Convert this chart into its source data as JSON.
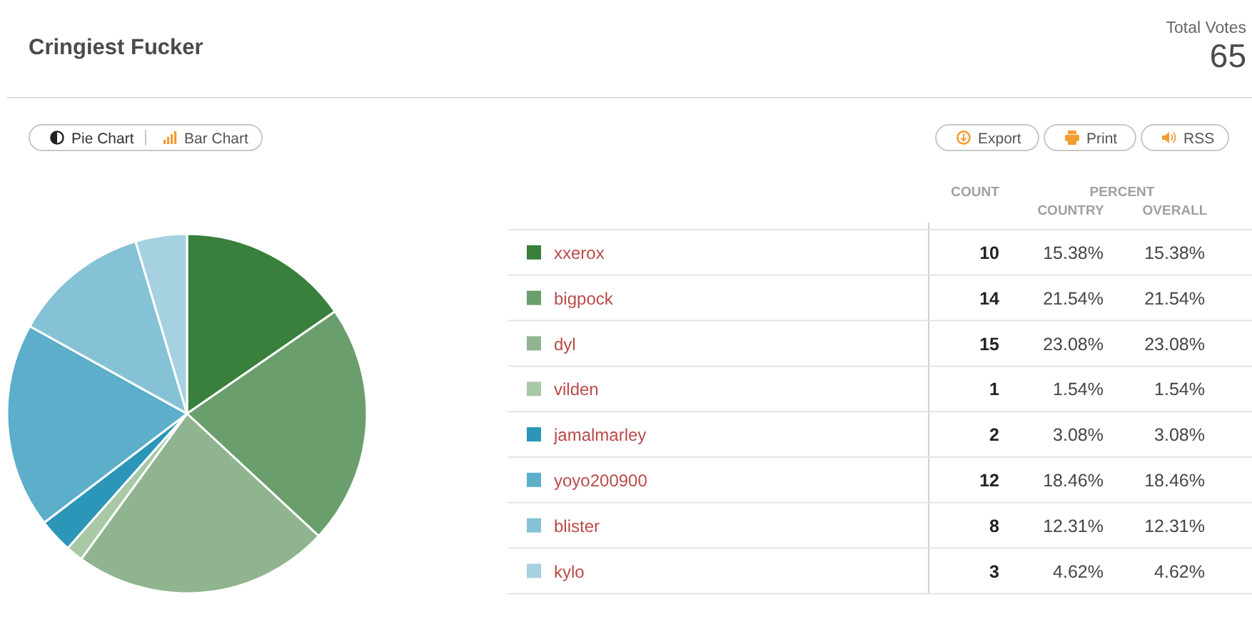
{
  "chart_data": {
    "type": "pie",
    "title": "Cringiest Fucker",
    "categories": [
      "xxerox",
      "bigpock",
      "dyl",
      "vilden",
      "jamalmarley",
      "yoyo200900",
      "blister",
      "kylo"
    ],
    "values": [
      10,
      14,
      15,
      1,
      2,
      12,
      8,
      3
    ],
    "colors": [
      "#38803c",
      "#6a9e6c",
      "#8fb48f",
      "#a9c8a6",
      "#2b96b8",
      "#5caecb",
      "#85c2d6",
      "#a5d1e1"
    ],
    "data_labels": true,
    "legend": "right",
    "annotations": [
      "Total Votes",
      "65",
      "Pie Chart",
      "Bar Chart",
      "Export",
      "Print",
      "RSS",
      "COUNT",
      "PERCENT",
      "COUNTRY",
      "OVERALL",
      "15.38%",
      "15.38%",
      "21.54%",
      "21.54%",
      "23.08%",
      "23.08%",
      "1.54%",
      "1.54%",
      "3.08%",
      "3.08%",
      "18.46%",
      "18.46%",
      "12.31%",
      "12.31%",
      "4.62%",
      "4.62%"
    ]
  }
}
